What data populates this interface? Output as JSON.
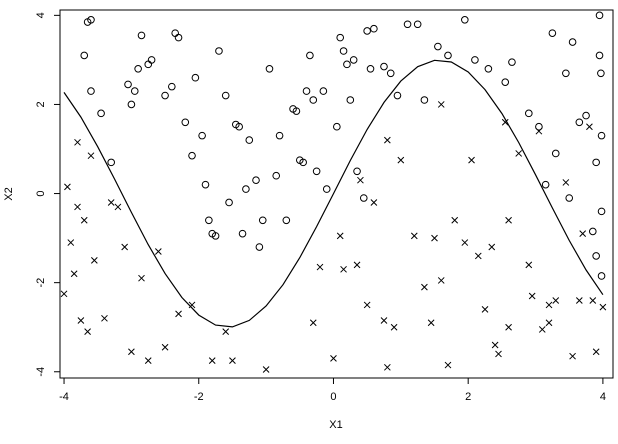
{
  "chart_data": {
    "type": "scatter",
    "x_label": "X1",
    "y_label": "X2",
    "xlim": [
      -4.06,
      4.15
    ],
    "ylim": [
      -4.14,
      4.12
    ],
    "xticks": [
      -4,
      -2,
      0,
      2,
      4
    ],
    "yticks": [
      -4,
      -2,
      0,
      2,
      4
    ],
    "series": [
      {
        "marker": "circle",
        "color": "#000000",
        "x": [
          -3.65,
          -3.6,
          -3.7,
          -3.6,
          -3.45,
          -3.3,
          -3.05,
          -3,
          -2.95,
          -2.9,
          -2.85,
          -2.75,
          -2.7,
          -2.5,
          -2.4,
          -2.35,
          -2.3,
          -2.2,
          -2.1,
          -2.05,
          -1.95,
          -1.9,
          -1.85,
          -1.8,
          -1.75,
          -1.7,
          -1.6,
          -1.55,
          -1.45,
          -1.4,
          -1.35,
          -1.3,
          -1.25,
          -1.15,
          -1.1,
          -1.05,
          -0.95,
          -0.85,
          -0.8,
          -0.7,
          -0.6,
          -0.55,
          -0.5,
          -0.45,
          -0.4,
          -0.35,
          -0.3,
          -0.25,
          -0.15,
          -0.1,
          0.05,
          0.1,
          0.15,
          0.2,
          0.25,
          0.3,
          0.35,
          0.45,
          0.5,
          0.55,
          0.6,
          0.75,
          0.85,
          0.95,
          1.1,
          1.25,
          1.35,
          1.55,
          1.7,
          1.95,
          2.1,
          2.3,
          2.55,
          2.65,
          2.9,
          3.05,
          3.15,
          3.25,
          3.45,
          3.55,
          3.65,
          3.75,
          3.85,
          3.9,
          3.9,
          3.95,
          3.95,
          3.97,
          3.98,
          3.98,
          3.98,
          3.5,
          3.3
        ],
        "y": [
          3.85,
          3.9,
          3.1,
          2.3,
          1.8,
          0.7,
          2.45,
          2.0,
          2.3,
          2.8,
          3.55,
          2.9,
          3.0,
          2.2,
          2.4,
          3.6,
          3.5,
          1.6,
          0.85,
          2.6,
          1.3,
          0.2,
          -0.6,
          -0.9,
          -0.95,
          3.2,
          2.2,
          -0.2,
          1.55,
          1.5,
          -0.9,
          0.1,
          1.2,
          0.3,
          -1.2,
          -0.6,
          2.8,
          0.4,
          1.3,
          -0.6,
          1.9,
          1.85,
          0.75,
          0.7,
          2.3,
          3.1,
          2.1,
          0.5,
          2.3,
          0.1,
          1.5,
          3.5,
          3.2,
          2.9,
          2.1,
          3.0,
          0.5,
          -0.1,
          3.65,
          2.8,
          3.7,
          2.85,
          2.7,
          2.2,
          3.8,
          3.8,
          2.1,
          3.3,
          3.1,
          3.9,
          3.0,
          2.8,
          2.5,
          2.95,
          1.8,
          1.5,
          0.2,
          3.6,
          2.7,
          3.4,
          1.6,
          1.75,
          -0.85,
          -1.4,
          0.7,
          3.1,
          4.0,
          2.7,
          1.3,
          -0.4,
          -1.85,
          -0.1,
          0.9
        ]
      },
      {
        "marker": "cross",
        "color": "#000000",
        "x": [
          -4.0,
          -3.95,
          -3.9,
          -3.85,
          -3.8,
          -3.8,
          -3.75,
          -3.7,
          -3.65,
          -3.6,
          -3.55,
          -3.4,
          -3.3,
          -3.2,
          -3.1,
          -3.0,
          -2.85,
          -2.75,
          -2.6,
          -2.5,
          -2.3,
          -2.1,
          -1.8,
          -1.6,
          -1.5,
          -1.0,
          -0.3,
          -0.2,
          0.1,
          0.0,
          0.15,
          0.35,
          0.4,
          0.5,
          0.6,
          0.75,
          0.8,
          0.9,
          1.0,
          1.2,
          1.35,
          1.45,
          1.6,
          1.7,
          1.8,
          1.95,
          2.05,
          2.15,
          2.25,
          2.35,
          2.4,
          2.55,
          2.6,
          2.75,
          2.9,
          2.95,
          3.05,
          3.1,
          3.2,
          3.3,
          3.45,
          3.55,
          3.65,
          3.8,
          3.9,
          4.0,
          3.7,
          3.85,
          3.2,
          2.45,
          1.5,
          0.8,
          1.6,
          2.6
        ],
        "y": [
          -2.25,
          0.15,
          -1.1,
          -1.8,
          1.15,
          -0.3,
          -2.85,
          -0.6,
          -3.1,
          0.85,
          -1.5,
          -2.8,
          -0.2,
          -0.3,
          -1.2,
          -3.55,
          -1.9,
          -3.75,
          -1.3,
          -3.45,
          -2.7,
          -2.5,
          -3.75,
          -3.1,
          -3.75,
          -3.95,
          -2.9,
          -1.65,
          -0.95,
          -3.7,
          -1.7,
          -1.6,
          0.3,
          -2.5,
          -0.2,
          -2.85,
          -3.9,
          -3.0,
          0.75,
          -0.95,
          -2.1,
          -2.9,
          -1.95,
          -3.85,
          -0.6,
          -1.1,
          0.75,
          -1.4,
          -2.6,
          -1.2,
          -3.4,
          1.6,
          -0.6,
          0.9,
          -1.6,
          -2.3,
          1.4,
          -3.05,
          -2.9,
          -2.4,
          0.25,
          -3.65,
          -2.4,
          1.5,
          -3.55,
          -2.55,
          -0.9,
          -2.4,
          -2.5,
          -3.6,
          -1.0,
          1.2,
          2.0,
          -3.0
        ]
      },
      {
        "marker": "line",
        "color": "#000000",
        "x": [
          -4,
          -3.75,
          -3.5,
          -3.25,
          -3,
          -2.75,
          -2.5,
          -2.25,
          -2,
          -1.75,
          -1.5,
          -1.25,
          -1,
          -0.75,
          -0.5,
          -0.25,
          0,
          0.25,
          0.5,
          0.75,
          1,
          1.25,
          1.5,
          1.75,
          2,
          2.25,
          2.5,
          2.75,
          3,
          3.25,
          3.5,
          3.75,
          4
        ],
        "y": [
          2.27,
          1.715,
          1.052,
          0.325,
          -0.423,
          -1.145,
          -1.796,
          -2.334,
          -2.728,
          -2.952,
          -2.992,
          -2.847,
          -2.524,
          -2.045,
          -1.438,
          -0.742,
          0,
          0.742,
          1.438,
          2.045,
          2.524,
          2.847,
          2.992,
          2.952,
          2.728,
          2.334,
          1.796,
          1.145,
          0.423,
          -0.325,
          -1.052,
          -1.715,
          -2.27
        ]
      }
    ]
  }
}
